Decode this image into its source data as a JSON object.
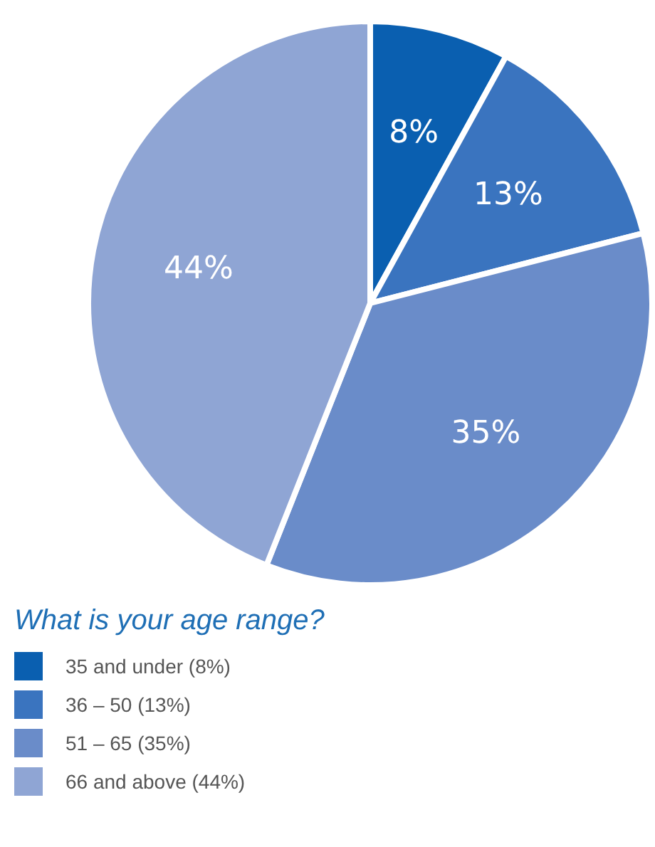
{
  "chart_data": {
    "type": "pie",
    "legend_title": "What is your age range?",
    "legend": "bottom left",
    "categories": [
      "35 and under (8%)",
      "36 – 50 (13%)",
      "51 – 65 (35%)",
      "66 and above (44%)"
    ],
    "values": [
      8,
      13,
      35,
      44
    ],
    "colors": [
      "#0a5fb0",
      "#3a74bf",
      "#6a8cc9",
      "#8fa5d4"
    ],
    "value_labels": [
      "8%",
      "13%",
      "35%",
      "44%"
    ]
  }
}
